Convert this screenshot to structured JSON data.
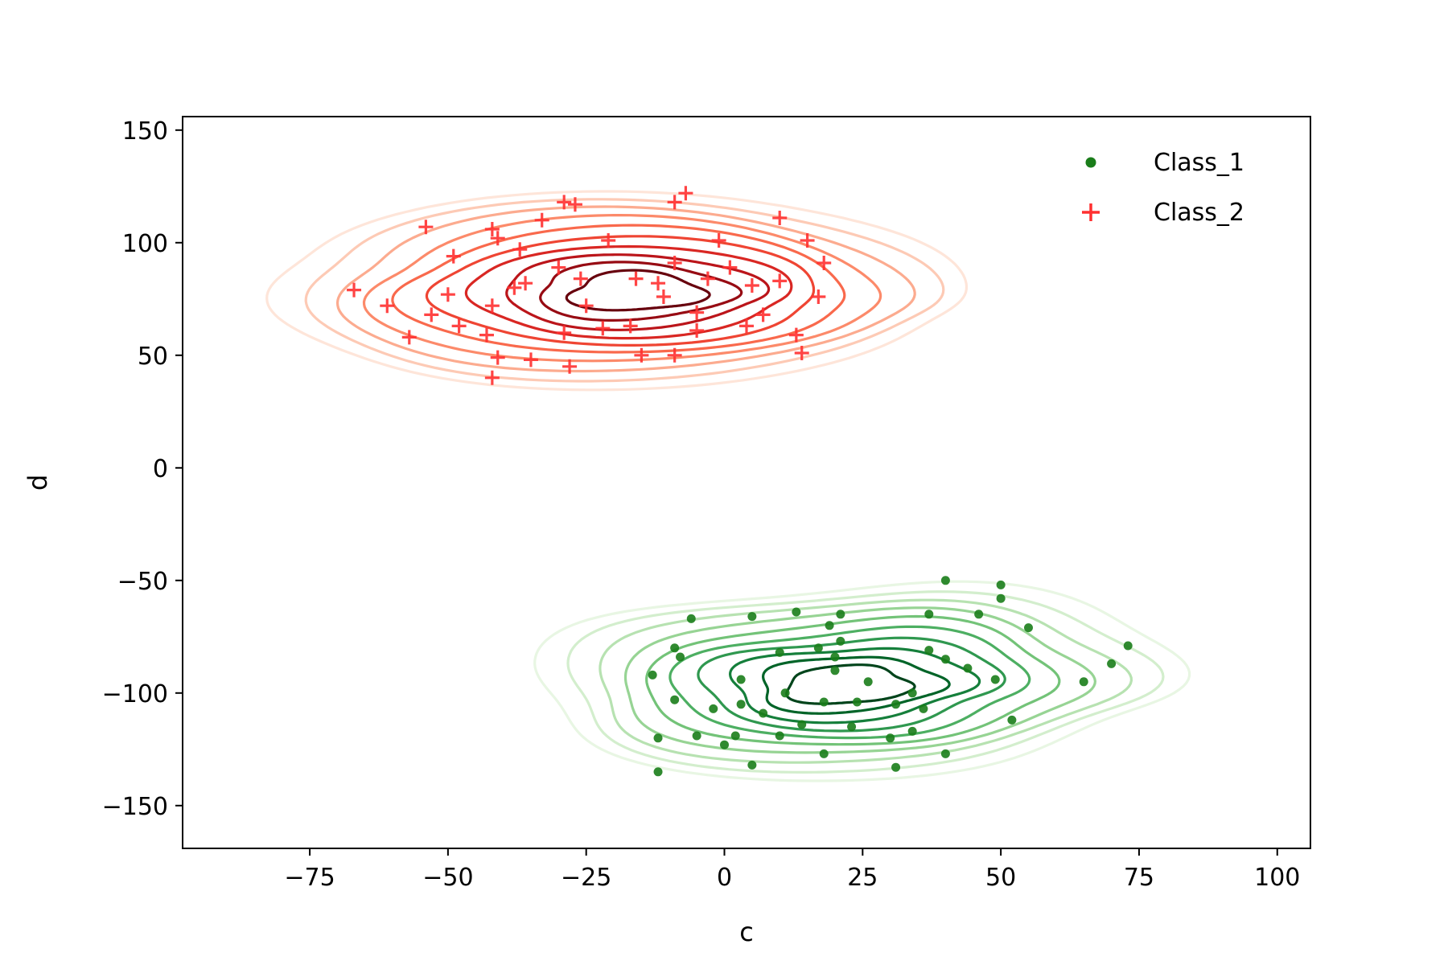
{
  "chart_data": {
    "type": "scatter",
    "title": "",
    "xlabel": "c",
    "ylabel": "d",
    "xlim": [
      -98,
      106
    ],
    "ylim": [
      -169,
      156
    ],
    "xticks": [
      -75,
      -50,
      -25,
      0,
      25,
      50,
      75,
      100
    ],
    "xtick_labels": [
      "−75",
      "−50",
      "−25",
      "0",
      "25",
      "50",
      "75",
      "100"
    ],
    "yticks": [
      -150,
      -100,
      -50,
      0,
      50,
      100,
      150
    ],
    "ytick_labels": [
      "−150",
      "−100",
      "−50",
      "0",
      "50",
      "100",
      "150"
    ],
    "grid": false,
    "legend_position": "upper-right",
    "overlay": "kernel density contours per class",
    "series": [
      {
        "name": "Class_1",
        "marker": "circle",
        "color": "#1a7d1a",
        "contour_colormap": "Greens",
        "contour_center": [
          22,
          -97
        ],
        "contour_spread": [
          26,
          20
        ],
        "points": [
          [
            -6,
            -67
          ],
          [
            5,
            -66
          ],
          [
            13,
            -64
          ],
          [
            21,
            -65
          ],
          [
            40,
            -50
          ],
          [
            50,
            -52
          ],
          [
            37,
            -65
          ],
          [
            46,
            -65
          ],
          [
            50,
            -58
          ],
          [
            55,
            -71
          ],
          [
            -9,
            -80
          ],
          [
            -8,
            -84
          ],
          [
            -13,
            -92
          ],
          [
            -9,
            -103
          ],
          [
            -2,
            -107
          ],
          [
            3,
            -94
          ],
          [
            3,
            -105
          ],
          [
            10,
            -82
          ],
          [
            11,
            -100
          ],
          [
            17,
            -80
          ],
          [
            19,
            -70
          ],
          [
            21,
            -77
          ],
          [
            20,
            -84
          ],
          [
            20,
            -90
          ],
          [
            18,
            -104
          ],
          [
            24,
            -104
          ],
          [
            26,
            -95
          ],
          [
            31,
            -105
          ],
          [
            34,
            -100
          ],
          [
            37,
            -81
          ],
          [
            40,
            -85
          ],
          [
            44,
            -89
          ],
          [
            49,
            -94
          ],
          [
            36,
            -107
          ],
          [
            7,
            -109
          ],
          [
            14,
            -114
          ],
          [
            -5,
            -119
          ],
          [
            2,
            -119
          ],
          [
            10,
            -119
          ],
          [
            0,
            -123
          ],
          [
            23,
            -115
          ],
          [
            30,
            -120
          ],
          [
            34,
            -117
          ],
          [
            -12,
            -120
          ],
          [
            -12,
            -135
          ],
          [
            5,
            -132
          ],
          [
            18,
            -127
          ],
          [
            31,
            -133
          ],
          [
            40,
            -127
          ],
          [
            52,
            -112
          ],
          [
            65,
            -95
          ],
          [
            70,
            -87
          ],
          [
            73,
            -79
          ]
        ]
      },
      {
        "name": "Class_2",
        "marker": "plus",
        "color": "#ff3030",
        "contour_colormap": "Reds",
        "contour_center": [
          -15,
          78
        ],
        "contour_spread": [
          30,
          20
        ],
        "points": [
          [
            -67,
            79
          ],
          [
            -61,
            72
          ],
          [
            -53,
            68
          ],
          [
            -48,
            63
          ],
          [
            -50,
            77
          ],
          [
            -49,
            94
          ],
          [
            -54,
            107
          ],
          [
            -42,
            106
          ],
          [
            -41,
            102
          ],
          [
            -37,
            97
          ],
          [
            -36,
            82
          ],
          [
            -42,
            72
          ],
          [
            -43,
            59
          ],
          [
            -41,
            49
          ],
          [
            -42,
            40
          ],
          [
            -35,
            48
          ],
          [
            -28,
            45
          ],
          [
            -30,
            89
          ],
          [
            -29,
            118
          ],
          [
            -27,
            117
          ],
          [
            -21,
            101
          ],
          [
            -26,
            84
          ],
          [
            -25,
            72
          ],
          [
            -22,
            62
          ],
          [
            -29,
            60
          ],
          [
            -16,
            84
          ],
          [
            -17,
            63
          ],
          [
            -12,
            82
          ],
          [
            -11,
            76
          ],
          [
            -9,
            91
          ],
          [
            -9,
            118
          ],
          [
            -7,
            122
          ],
          [
            -5,
            69
          ],
          [
            -3,
            84
          ],
          [
            1,
            89
          ],
          [
            4,
            63
          ],
          [
            7,
            68
          ],
          [
            10,
            83
          ],
          [
            5,
            81
          ],
          [
            10,
            111
          ],
          [
            -1,
            101
          ],
          [
            -33,
            110
          ],
          [
            -57,
            58
          ],
          [
            -15,
            50
          ],
          [
            -9,
            50
          ],
          [
            -5,
            61
          ],
          [
            15,
            101
          ],
          [
            18,
            91
          ],
          [
            17,
            76
          ],
          [
            13,
            59
          ],
          [
            14,
            51
          ],
          [
            -38,
            80
          ]
        ]
      }
    ]
  }
}
